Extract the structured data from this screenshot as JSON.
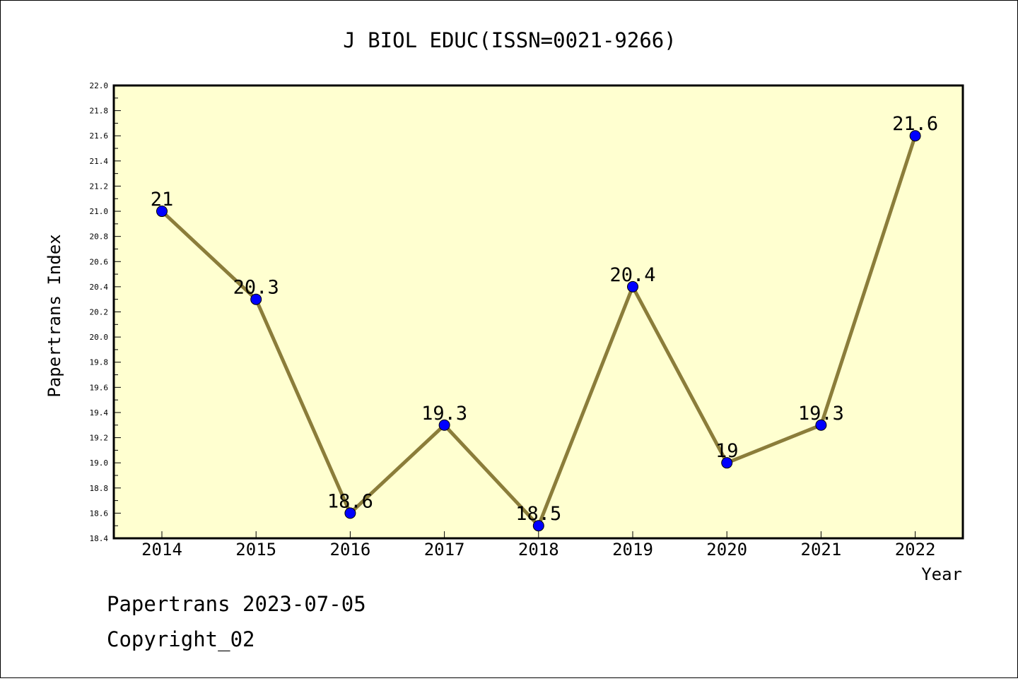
{
  "chart_data": {
    "type": "line",
    "title": "J BIOL EDUC(ISSN=0021-9266)",
    "xlabel": "Year",
    "ylabel": "Papertrans Index",
    "categories": [
      "2014",
      "2015",
      "2016",
      "2017",
      "2018",
      "2019",
      "2020",
      "2021",
      "2022"
    ],
    "series": [
      {
        "values": [
          21,
          20.3,
          18.6,
          19.3,
          18.5,
          20.4,
          19,
          19.3,
          21.6
        ]
      }
    ],
    "data_labels": [
      "21",
      "20.3",
      "18.6",
      "19.3",
      "18.5",
      "20.4",
      "19",
      "19.3",
      "21.6"
    ],
    "ylim": [
      18.4,
      22.0
    ],
    "yticks": [
      "18.4",
      "18.6",
      "18.8",
      "19.0",
      "19.2",
      "19.4",
      "19.6",
      "19.8",
      "20.0",
      "20.2",
      "20.4",
      "20.6",
      "20.8",
      "21.0",
      "21.2",
      "21.4",
      "21.6",
      "21.8",
      "22.0"
    ],
    "grid": false,
    "colors": {
      "plot_background": "#ffffd0",
      "line": "#8b7d3a",
      "marker": "#0000ff"
    }
  },
  "footer": {
    "line1": "Papertrans 2023-07-05",
    "line2": "Copyright_02"
  }
}
